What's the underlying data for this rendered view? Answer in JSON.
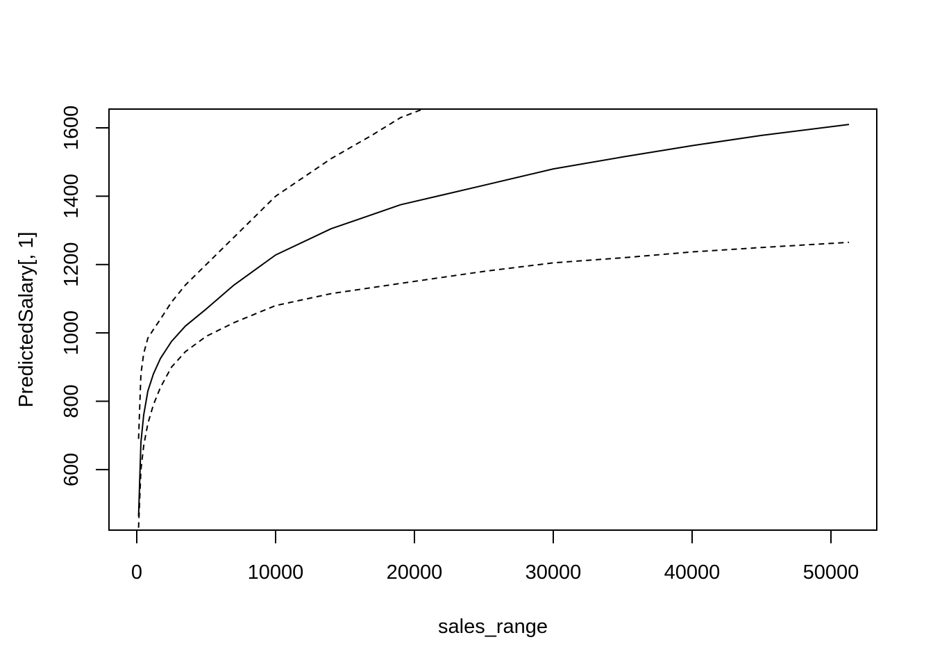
{
  "chart_data": {
    "type": "line",
    "title": "",
    "xlabel": "sales_range",
    "ylabel": "PredictedSalary[, 1]",
    "xlim": [
      -2000,
      53300
    ],
    "ylim": [
      423,
      1655
    ],
    "x_ticks": [
      0,
      10000,
      20000,
      30000,
      40000,
      50000
    ],
    "x_tick_labels": [
      "0",
      "10000",
      "20000",
      "30000",
      "40000",
      "50000"
    ],
    "y_ticks": [
      600,
      800,
      1000,
      1200,
      1400,
      1600
    ],
    "y_tick_labels": [
      "600",
      "800",
      "1000",
      "1200",
      "1400",
      "1600"
    ],
    "grid": false,
    "legend": "none",
    "series": [
      {
        "line_style": "solid",
        "x": [
          128,
          300,
          500,
          800,
          1200,
          1700,
          2500,
          3500,
          5000,
          7000,
          10000,
          14000,
          19000,
          25000,
          30000,
          35000,
          40000,
          45000,
          51300
        ],
        "y": [
          463,
          680,
          760,
          830,
          880,
          925,
          975,
          1020,
          1070,
          1140,
          1228,
          1305,
          1375,
          1432,
          1480,
          1515,
          1548,
          1578,
          1610
        ]
      },
      {
        "line_style": "dashed",
        "x": [
          128,
          300,
          500,
          800,
          1200,
          1700,
          2500,
          3500,
          5000,
          7000,
          10000,
          14000,
          17000,
          19000,
          20600
        ],
        "y": [
          690,
          880,
          940,
          985,
          1010,
          1040,
          1090,
          1140,
          1200,
          1280,
          1400,
          1510,
          1580,
          1630,
          1655
        ]
      },
      {
        "line_style": "dashed",
        "x": [
          128,
          300,
          500,
          800,
          1200,
          1700,
          2500,
          3500,
          5000,
          7000,
          10000,
          14000,
          19000,
          25000,
          30000,
          35000,
          40000,
          45000,
          51300
        ],
        "y": [
          430,
          600,
          670,
          735,
          790,
          840,
          900,
          945,
          990,
          1030,
          1080,
          1115,
          1145,
          1180,
          1205,
          1220,
          1237,
          1250,
          1265
        ]
      }
    ]
  }
}
